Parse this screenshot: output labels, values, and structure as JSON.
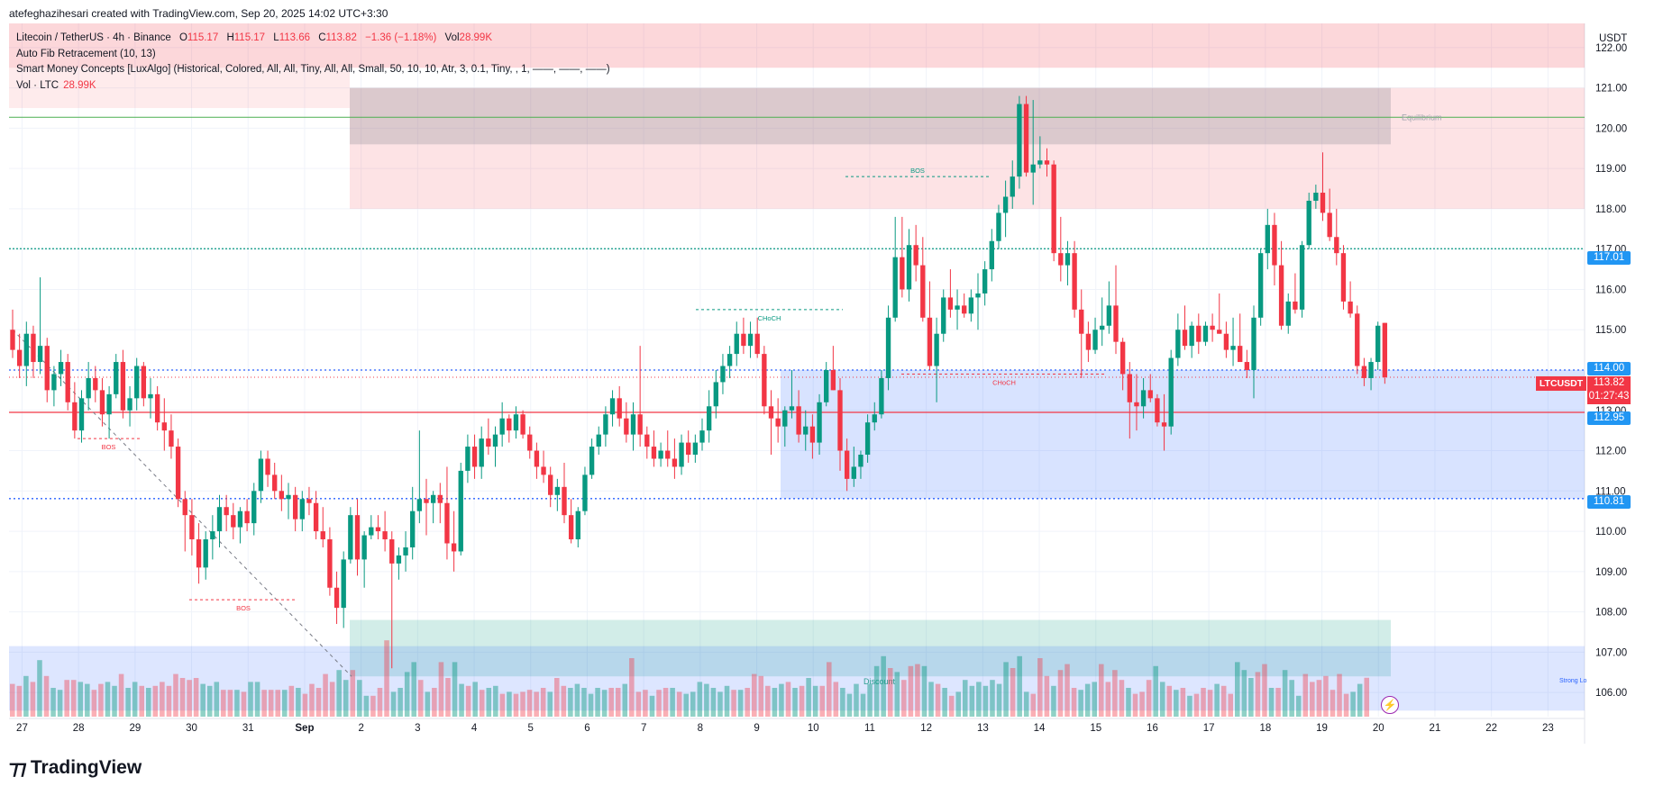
{
  "header": {
    "credit": "atefeghazihesari created with TradingView.com, Sep 20, 2025 14:02 UTC+3:30"
  },
  "legend": {
    "symbol": "Litecoin / TetherUS · 4h · Binance",
    "o_label": "O",
    "o": "115.17",
    "h_label": "H",
    "h": "115.17",
    "l_label": "L",
    "l": "113.66",
    "c_label": "C",
    "c": "113.82",
    "change": "−1.36 (−1.18%)",
    "vol_label": "Vol",
    "vol": "28.99K",
    "indicator1": "Auto Fib Retracement (10, 13)",
    "indicator2": "Smart Money Concepts [LuxAlgo] (Historical, Colored, All, All, Tiny, All, All, Small, 50, 10, 10, Atr, 3, 0.1, Tiny, , 1, ——, ——, ——)",
    "vol_row_label": "Vol · LTC",
    "vol_row_value": "28.99K"
  },
  "axis": {
    "currency": "USDT",
    "price_ticks": [
      "122.00",
      "121.00",
      "120.00",
      "119.00",
      "118.00",
      "117.00",
      "116.00",
      "115.00",
      "114.00",
      "113.00",
      "112.00",
      "111.00",
      "110.00",
      "109.00",
      "108.00",
      "107.00",
      "106.00"
    ],
    "date_ticks": [
      "27",
      "28",
      "29",
      "30",
      "31",
      "Sep",
      "2",
      "3",
      "4",
      "5",
      "6",
      "7",
      "8",
      "9",
      "10",
      "11",
      "12",
      "13",
      "14",
      "15",
      "16",
      "17",
      "18",
      "19",
      "20",
      "21",
      "22",
      "23"
    ]
  },
  "price_tags": {
    "p117": "117.01",
    "p114": "114.00",
    "p11295": "112.95",
    "p11081": "110.81",
    "current": "113.82",
    "countdown": "01:27:43",
    "symbol_tag": "LTCUSDT"
  },
  "annotations": {
    "equilibrium": "Equilibrium",
    "discount": "Discount",
    "strong_low": "Strong Lo",
    "bos1": "BOS",
    "bos2": "BOS",
    "bos3": "BOS",
    "choch1": "CHoCH",
    "choch2": "CHoCH"
  },
  "colors": {
    "up": "#089981",
    "down": "#f23645",
    "blue": "#2962ff"
  },
  "footer": {
    "brand": "TradingView"
  },
  "chart_data": {
    "type": "candlestick",
    "title": "Litecoin / TetherUS · 4h · Binance",
    "ylim": [
      105.4,
      122.6
    ],
    "y_ticks": [
      106,
      107,
      108,
      109,
      110,
      111,
      112,
      113,
      114,
      115,
      116,
      117,
      118,
      119,
      120,
      121,
      122
    ],
    "x_range_days": [
      27,
      54
    ],
    "levels": [
      117.01,
      114.0,
      112.95,
      110.81
    ],
    "candles": [
      [
        115.0,
        115.5,
        114.3,
        114.5
      ],
      [
        114.5,
        114.9,
        113.8,
        114.1
      ],
      [
        114.1,
        115.2,
        113.6,
        114.9
      ],
      [
        114.9,
        115.1,
        113.8,
        114.2
      ],
      [
        114.2,
        116.3,
        113.9,
        114.6
      ],
      [
        114.6,
        114.8,
        113.2,
        113.5
      ],
      [
        113.5,
        114.1,
        113.1,
        113.9
      ],
      [
        113.9,
        114.5,
        113.6,
        114.2
      ],
      [
        114.2,
        114.4,
        113.0,
        113.2
      ],
      [
        113.2,
        113.7,
        112.3,
        112.5
      ],
      [
        112.5,
        113.5,
        112.2,
        113.3
      ],
      [
        113.3,
        114.2,
        113.0,
        113.8
      ],
      [
        113.8,
        114.1,
        113.2,
        113.5
      ],
      [
        113.5,
        113.8,
        112.6,
        112.9
      ],
      [
        112.9,
        113.6,
        112.3,
        113.4
      ],
      [
        113.4,
        114.4,
        113.3,
        114.2
      ],
      [
        114.2,
        114.5,
        112.8,
        113.0
      ],
      [
        113.0,
        113.6,
        112.6,
        113.3
      ],
      [
        113.3,
        114.3,
        113.0,
        114.1
      ],
      [
        114.1,
        114.2,
        113.1,
        113.3
      ],
      [
        113.3,
        113.8,
        112.8,
        113.4
      ],
      [
        113.4,
        113.6,
        112.5,
        112.7
      ],
      [
        112.7,
        113.3,
        112.0,
        112.5
      ],
      [
        112.5,
        112.9,
        111.8,
        112.1
      ],
      [
        112.1,
        112.3,
        110.6,
        110.8
      ],
      [
        110.8,
        111.0,
        109.5,
        110.4
      ],
      [
        110.4,
        110.8,
        109.4,
        109.8
      ],
      [
        109.8,
        110.2,
        108.7,
        109.1
      ],
      [
        109.1,
        110.0,
        108.8,
        109.8
      ],
      [
        109.8,
        110.4,
        109.3,
        110.0
      ],
      [
        110.0,
        110.9,
        109.6,
        110.6
      ],
      [
        110.6,
        110.9,
        110.0,
        110.4
      ],
      [
        110.4,
        110.7,
        109.8,
        110.1
      ],
      [
        110.1,
        110.6,
        109.7,
        110.5
      ],
      [
        110.5,
        110.8,
        110.0,
        110.2
      ],
      [
        110.2,
        111.2,
        109.9,
        111.0
      ],
      [
        111.0,
        112.0,
        110.7,
        111.8
      ],
      [
        111.8,
        112.0,
        111.1,
        111.4
      ],
      [
        111.4,
        111.7,
        110.8,
        111.0
      ],
      [
        111.0,
        111.4,
        110.5,
        110.8
      ],
      [
        110.8,
        111.2,
        110.3,
        110.9
      ],
      [
        110.9,
        111.1,
        110.0,
        110.3
      ],
      [
        110.3,
        111.0,
        110.0,
        110.8
      ],
      [
        110.8,
        111.1,
        110.4,
        110.7
      ],
      [
        110.7,
        111.0,
        109.8,
        110.0
      ],
      [
        110.0,
        110.6,
        109.6,
        109.8
      ],
      [
        109.8,
        110.1,
        108.4,
        108.6
      ],
      [
        108.6,
        109.0,
        107.7,
        108.1
      ],
      [
        108.1,
        109.5,
        107.6,
        109.3
      ],
      [
        109.3,
        110.6,
        109.2,
        110.4
      ],
      [
        110.4,
        110.8,
        108.9,
        109.3
      ],
      [
        109.3,
        110.0,
        108.6,
        109.9
      ],
      [
        109.9,
        110.4,
        109.8,
        110.1
      ],
      [
        110.1,
        110.4,
        109.8,
        110.0
      ],
      [
        110.0,
        110.5,
        109.5,
        109.8
      ],
      [
        109.8,
        110.0,
        106.6,
        109.2
      ],
      [
        109.2,
        109.6,
        108.8,
        109.4
      ],
      [
        109.4,
        110.0,
        109.0,
        109.6
      ],
      [
        109.6,
        111.1,
        109.3,
        110.5
      ],
      [
        110.5,
        112.5,
        110.2,
        110.8
      ],
      [
        110.8,
        111.3,
        109.9,
        110.7
      ],
      [
        110.7,
        111.0,
        110.2,
        110.9
      ],
      [
        110.9,
        111.2,
        110.2,
        110.7
      ],
      [
        110.7,
        111.6,
        109.3,
        109.7
      ],
      [
        109.7,
        110.5,
        109.0,
        109.5
      ],
      [
        109.5,
        111.7,
        109.4,
        111.5
      ],
      [
        111.5,
        112.4,
        111.2,
        112.1
      ],
      [
        112.1,
        112.4,
        111.3,
        111.6
      ],
      [
        111.6,
        112.6,
        111.3,
        112.3
      ],
      [
        112.3,
        112.8,
        111.9,
        112.1
      ],
      [
        112.1,
        112.6,
        111.6,
        112.4
      ],
      [
        112.4,
        113.2,
        112.1,
        112.8
      ],
      [
        112.8,
        112.9,
        112.2,
        112.5
      ],
      [
        112.5,
        113.1,
        112.3,
        112.9
      ],
      [
        112.9,
        113.0,
        112.3,
        112.4
      ],
      [
        112.4,
        112.6,
        111.8,
        112.0
      ],
      [
        112.0,
        112.2,
        111.3,
        111.6
      ],
      [
        111.6,
        112.0,
        111.2,
        111.4
      ],
      [
        111.4,
        111.6,
        110.6,
        110.9
      ],
      [
        110.9,
        111.3,
        110.5,
        111.1
      ],
      [
        111.1,
        111.7,
        110.2,
        110.4
      ],
      [
        110.4,
        110.8,
        109.7,
        109.8
      ],
      [
        109.8,
        110.6,
        109.6,
        110.5
      ],
      [
        110.5,
        111.6,
        110.4,
        111.4
      ],
      [
        111.4,
        112.3,
        111.3,
        112.1
      ],
      [
        112.1,
        112.6,
        111.9,
        112.4
      ],
      [
        112.4,
        113.1,
        112.1,
        112.9
      ],
      [
        112.9,
        113.5,
        112.6,
        113.3
      ],
      [
        113.3,
        113.6,
        112.6,
        112.8
      ],
      [
        112.8,
        113.2,
        112.2,
        112.4
      ],
      [
        112.4,
        113.2,
        112.0,
        112.9
      ],
      [
        112.9,
        114.6,
        112.1,
        112.4
      ],
      [
        112.4,
        112.6,
        111.8,
        112.1
      ],
      [
        112.1,
        112.5,
        111.6,
        111.8
      ],
      [
        111.8,
        112.2,
        111.6,
        112.0
      ],
      [
        112.0,
        112.5,
        111.6,
        111.8
      ],
      [
        111.8,
        112.3,
        111.3,
        111.6
      ],
      [
        111.6,
        112.4,
        111.4,
        112.2
      ],
      [
        112.2,
        112.5,
        111.7,
        111.9
      ],
      [
        111.9,
        112.4,
        111.7,
        112.2
      ],
      [
        112.2,
        112.8,
        112.0,
        112.5
      ],
      [
        112.5,
        113.5,
        112.2,
        113.1
      ],
      [
        113.1,
        114.0,
        112.8,
        113.7
      ],
      [
        113.7,
        114.4,
        113.4,
        114.1
      ],
      [
        114.1,
        114.6,
        113.8,
        114.4
      ],
      [
        114.4,
        115.2,
        114.1,
        114.9
      ],
      [
        114.9,
        115.3,
        114.4,
        114.6
      ],
      [
        114.6,
        115.2,
        114.3,
        114.9
      ],
      [
        114.9,
        115.3,
        114.3,
        114.4
      ],
      [
        114.4,
        114.6,
        112.9,
        113.1
      ],
      [
        113.1,
        113.5,
        111.9,
        112.8
      ],
      [
        112.8,
        113.3,
        112.2,
        112.6
      ],
      [
        112.6,
        113.1,
        112.1,
        113.0
      ],
      [
        113.0,
        114.0,
        112.8,
        113.1
      ],
      [
        113.1,
        113.5,
        112.2,
        112.4
      ],
      [
        112.4,
        113.0,
        112.0,
        112.6
      ],
      [
        112.6,
        112.9,
        111.8,
        112.2
      ],
      [
        112.2,
        113.4,
        111.9,
        113.2
      ],
      [
        113.2,
        114.2,
        113.1,
        114.0
      ],
      [
        114.0,
        114.6,
        113.5,
        113.5
      ],
      [
        113.5,
        113.8,
        111.5,
        112.0
      ],
      [
        112.0,
        112.3,
        111.0,
        111.3
      ],
      [
        111.3,
        112.1,
        111.1,
        111.6
      ],
      [
        111.6,
        112.0,
        111.3,
        111.9
      ],
      [
        111.9,
        112.9,
        111.7,
        112.7
      ],
      [
        112.7,
        113.2,
        112.5,
        112.9
      ],
      [
        112.9,
        114.0,
        112.8,
        113.8
      ],
      [
        113.8,
        115.6,
        113.5,
        115.3
      ],
      [
        115.3,
        117.8,
        115.2,
        116.8
      ],
      [
        116.8,
        117.8,
        115.8,
        116.0
      ],
      [
        116.0,
        117.5,
        115.7,
        117.1
      ],
      [
        117.1,
        117.6,
        116.2,
        116.6
      ],
      [
        116.6,
        117.3,
        115.2,
        115.3
      ],
      [
        115.3,
        116.2,
        114.0,
        114.1
      ],
      [
        114.1,
        115.3,
        113.2,
        114.9
      ],
      [
        114.9,
        116.0,
        114.7,
        115.8
      ],
      [
        115.8,
        116.5,
        115.3,
        115.5
      ],
      [
        115.5,
        116.0,
        115.0,
        115.6
      ],
      [
        115.6,
        115.9,
        115.3,
        115.4
      ],
      [
        115.4,
        116.0,
        115.2,
        115.8
      ],
      [
        115.8,
        116.4,
        115.0,
        115.9
      ],
      [
        115.9,
        116.7,
        115.6,
        116.5
      ],
      [
        116.5,
        117.5,
        116.2,
        117.2
      ],
      [
        117.2,
        118.1,
        117.0,
        117.9
      ],
      [
        117.9,
        118.7,
        117.3,
        118.3
      ],
      [
        118.3,
        119.2,
        118.0,
        118.8
      ],
      [
        118.8,
        120.8,
        118.5,
        120.6
      ],
      [
        120.6,
        120.8,
        118.8,
        118.9
      ],
      [
        118.9,
        120.7,
        118.1,
        119.1
      ],
      [
        119.1,
        119.8,
        119.0,
        119.2
      ],
      [
        119.2,
        119.5,
        118.8,
        119.1
      ],
      [
        119.1,
        119.2,
        116.7,
        116.9
      ],
      [
        116.9,
        117.8,
        116.2,
        116.6
      ],
      [
        116.6,
        117.2,
        116.1,
        116.9
      ],
      [
        116.9,
        117.2,
        115.3,
        115.5
      ],
      [
        115.5,
        116.0,
        113.8,
        114.9
      ],
      [
        114.9,
        115.2,
        114.2,
        114.5
      ],
      [
        114.5,
        115.3,
        114.4,
        115.0
      ],
      [
        115.0,
        115.8,
        114.6,
        115.1
      ],
      [
        115.1,
        116.2,
        114.9,
        115.6
      ],
      [
        115.6,
        116.6,
        114.4,
        114.7
      ],
      [
        114.7,
        114.8,
        113.5,
        113.9
      ],
      [
        113.9,
        114.2,
        112.3,
        113.2
      ],
      [
        113.2,
        113.9,
        112.5,
        113.1
      ],
      [
        113.1,
        113.8,
        112.8,
        113.5
      ],
      [
        113.5,
        113.9,
        113.2,
        113.3
      ],
      [
        113.3,
        113.4,
        112.6,
        112.7
      ],
      [
        112.7,
        113.4,
        112.0,
        112.6
      ],
      [
        112.6,
        114.5,
        112.4,
        114.3
      ],
      [
        114.3,
        115.4,
        114.1,
        115.0
      ],
      [
        115.0,
        115.6,
        114.5,
        114.6
      ],
      [
        114.6,
        115.2,
        114.3,
        115.1
      ],
      [
        115.1,
        115.4,
        114.4,
        114.7
      ],
      [
        114.7,
        115.2,
        114.6,
        115.1
      ],
      [
        115.1,
        115.4,
        114.7,
        115.0
      ],
      [
        115.0,
        115.9,
        114.9,
        114.9
      ],
      [
        114.9,
        115.2,
        114.3,
        114.5
      ],
      [
        114.5,
        115.3,
        114.1,
        114.6
      ],
      [
        114.6,
        115.4,
        114.3,
        114.2
      ],
      [
        114.2,
        114.5,
        113.8,
        114.0
      ],
      [
        114.0,
        115.6,
        113.3,
        115.3
      ],
      [
        115.3,
        117.0,
        115.1,
        116.9
      ],
      [
        116.9,
        118.0,
        116.5,
        117.6
      ],
      [
        117.6,
        117.9,
        116.1,
        116.6
      ],
      [
        116.6,
        117.2,
        115.0,
        115.1
      ],
      [
        115.1,
        115.9,
        114.9,
        115.7
      ],
      [
        115.7,
        116.4,
        115.4,
        115.5
      ],
      [
        115.5,
        117.2,
        115.3,
        117.1
      ],
      [
        117.1,
        118.4,
        117.0,
        118.2
      ],
      [
        118.2,
        118.6,
        118.0,
        118.4
      ],
      [
        118.4,
        119.4,
        117.7,
        117.9
      ],
      [
        117.9,
        118.5,
        117.2,
        117.3
      ],
      [
        117.3,
        118.0,
        116.6,
        116.9
      ],
      [
        116.9,
        117.1,
        115.5,
        115.7
      ],
      [
        115.7,
        116.2,
        115.3,
        115.4
      ],
      [
        115.4,
        115.6,
        113.9,
        114.1
      ],
      [
        114.1,
        114.3,
        113.6,
        113.8
      ],
      [
        113.8,
        114.3,
        113.5,
        114.2
      ],
      [
        114.2,
        115.2,
        114.0,
        115.1
      ],
      [
        115.17,
        115.17,
        113.66,
        113.82
      ]
    ],
    "volume_scale_max": 1
  }
}
